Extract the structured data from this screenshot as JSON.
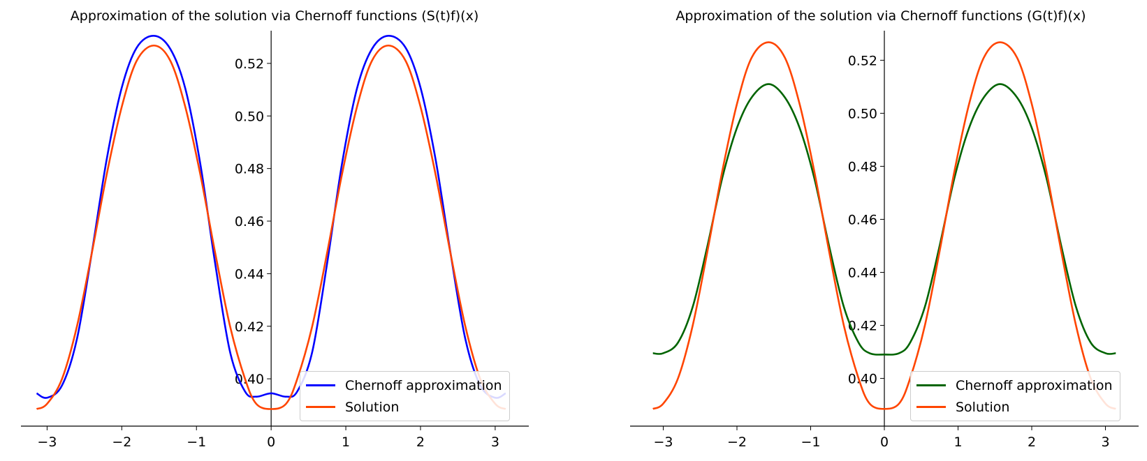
{
  "chart_data": [
    {
      "type": "line",
      "title": "Approximation of the solution via Chernoff functions (S(t)f)(x)",
      "xlabel": "",
      "ylabel": "",
      "xlim": [
        -3.35,
        3.45
      ],
      "ylim": [
        0.382,
        0.5335
      ],
      "x_ticks": [
        -3,
        -2,
        -1,
        0,
        1,
        2,
        3
      ],
      "x_tick_labels": [
        "−3",
        "−2",
        "−1",
        "0",
        "1",
        "2",
        "3"
      ],
      "y_ticks": [
        0.4,
        0.42,
        0.44,
        0.46,
        0.48,
        0.5,
        0.52
      ],
      "y_tick_labels": [
        "0.40",
        "0.42",
        "0.44",
        "0.46",
        "0.48",
        "0.50",
        "0.52"
      ],
      "spines": "centered at zero",
      "grid": false,
      "legend_position": "lower right",
      "series": [
        {
          "name": "Chernoff approximation",
          "color": "#0000ff",
          "x": [
            -3.14,
            -3.0,
            -2.8,
            -2.6,
            -2.4,
            -2.2,
            -2.0,
            -1.8,
            -1.57,
            -1.35,
            -1.15,
            -0.95,
            -0.75,
            -0.55,
            -0.35,
            -0.2,
            0.0,
            0.2,
            0.35,
            0.55,
            0.75,
            0.95,
            1.15,
            1.35,
            1.57,
            1.8,
            2.0,
            2.2,
            2.4,
            2.6,
            2.8,
            3.0,
            3.14
          ],
          "y": [
            0.3945,
            0.3928,
            0.3975,
            0.4152,
            0.4482,
            0.4838,
            0.5108,
            0.526,
            0.5305,
            0.5255,
            0.5105,
            0.482,
            0.444,
            0.4102,
            0.3952,
            0.3932,
            0.3945,
            0.3932,
            0.3952,
            0.4102,
            0.444,
            0.482,
            0.5105,
            0.5255,
            0.5305,
            0.526,
            0.5108,
            0.4838,
            0.4482,
            0.4152,
            0.3975,
            0.3928,
            0.3945
          ]
        },
        {
          "name": "Solution",
          "color": "#ff4500",
          "x": [
            -3.14,
            -3.0,
            -2.8,
            -2.6,
            -2.4,
            -2.2,
            -2.0,
            -1.8,
            -1.57,
            -1.35,
            -1.15,
            -0.95,
            -0.75,
            -0.55,
            -0.35,
            -0.2,
            0.0,
            0.2,
            0.35,
            0.55,
            0.75,
            0.95,
            1.15,
            1.35,
            1.57,
            1.8,
            2.0,
            2.2,
            2.4,
            2.6,
            2.8,
            3.0,
            3.14
          ],
          "y": [
            0.3885,
            0.3905,
            0.4,
            0.42,
            0.448,
            0.478,
            0.5035,
            0.521,
            0.5268,
            0.521,
            0.5035,
            0.478,
            0.448,
            0.42,
            0.4,
            0.3905,
            0.3885,
            0.3905,
            0.4,
            0.42,
            0.448,
            0.478,
            0.5035,
            0.521,
            0.5268,
            0.521,
            0.5035,
            0.478,
            0.448,
            0.42,
            0.4,
            0.3905,
            0.3885
          ]
        }
      ]
    },
    {
      "type": "line",
      "title": "Approximation of the solution via Chernoff functions (G(t)f)(x)",
      "xlabel": "",
      "ylabel": "",
      "xlim": [
        -3.45,
        3.45
      ],
      "ylim": [
        0.382,
        0.5322
      ],
      "x_ticks": [
        -3,
        -2,
        -1,
        0,
        1,
        2,
        3
      ],
      "x_tick_labels": [
        "−3",
        "−2",
        "−1",
        "0",
        "1",
        "2",
        "3"
      ],
      "y_ticks": [
        0.4,
        0.42,
        0.44,
        0.46,
        0.48,
        0.5,
        0.52
      ],
      "y_tick_labels": [
        "0.40",
        "0.42",
        "0.44",
        "0.46",
        "0.48",
        "0.50",
        "0.52"
      ],
      "spines": "centered at zero",
      "grid": false,
      "legend_position": "lower right",
      "series": [
        {
          "name": "Chernoff approximation",
          "color": "#006400",
          "x": [
            -3.14,
            -3.0,
            -2.8,
            -2.6,
            -2.4,
            -2.2,
            -2.0,
            -1.8,
            -1.57,
            -1.35,
            -1.15,
            -0.95,
            -0.75,
            -0.55,
            -0.35,
            -0.2,
            0.0,
            0.2,
            0.35,
            0.55,
            0.75,
            0.95,
            1.15,
            1.35,
            1.57,
            1.8,
            2.0,
            2.2,
            2.4,
            2.6,
            2.8,
            3.0,
            3.14
          ],
          "y": [
            0.4095,
            0.4095,
            0.4135,
            0.427,
            0.45,
            0.4755,
            0.4945,
            0.506,
            0.511,
            0.506,
            0.4945,
            0.4755,
            0.45,
            0.427,
            0.4135,
            0.4095,
            0.409,
            0.4095,
            0.4135,
            0.427,
            0.45,
            0.4755,
            0.4945,
            0.506,
            0.511,
            0.506,
            0.4945,
            0.4755,
            0.45,
            0.427,
            0.4135,
            0.4095,
            0.4095
          ]
        },
        {
          "name": "Solution",
          "color": "#ff4500",
          "x": [
            -3.14,
            -3.0,
            -2.8,
            -2.6,
            -2.4,
            -2.2,
            -2.0,
            -1.8,
            -1.57,
            -1.35,
            -1.15,
            -0.95,
            -0.75,
            -0.55,
            -0.35,
            -0.2,
            0.0,
            0.2,
            0.35,
            0.55,
            0.75,
            0.95,
            1.15,
            1.35,
            1.57,
            1.8,
            2.0,
            2.2,
            2.4,
            2.6,
            2.8,
            3.0,
            3.14
          ],
          "y": [
            0.3885,
            0.3905,
            0.4,
            0.42,
            0.448,
            0.478,
            0.5035,
            0.521,
            0.5268,
            0.521,
            0.5035,
            0.478,
            0.448,
            0.42,
            0.4,
            0.3905,
            0.3885,
            0.3905,
            0.4,
            0.42,
            0.448,
            0.478,
            0.5035,
            0.521,
            0.5268,
            0.521,
            0.5035,
            0.478,
            0.448,
            0.42,
            0.4,
            0.3905,
            0.3885
          ]
        }
      ]
    }
  ]
}
